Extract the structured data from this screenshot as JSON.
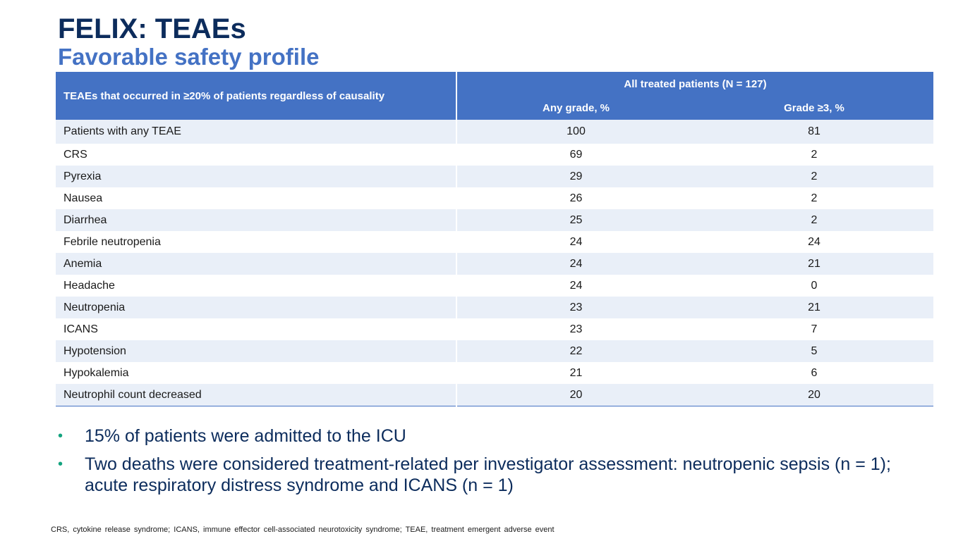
{
  "slide": {
    "title": "FELIX: TEAEs",
    "subtitle": "Favorable safety profile"
  },
  "table": {
    "row_header": "TEAEs that occurred in ≥20% of patients regardless of causality",
    "group_header": "All treated patients (N = 127)",
    "col_any": "Any grade, %",
    "col_grade3": "Grade ≥3, %",
    "rows": [
      {
        "name": "Patients with any TEAE",
        "any": "100",
        "g3": "81"
      },
      {
        "name": "CRS",
        "any": "69",
        "g3": "2"
      },
      {
        "name": "Pyrexia",
        "any": "29",
        "g3": "2"
      },
      {
        "name": "Nausea",
        "any": "26",
        "g3": "2"
      },
      {
        "name": "Diarrhea",
        "any": "25",
        "g3": "2"
      },
      {
        "name": "Febrile neutropenia",
        "any": "24",
        "g3": "24"
      },
      {
        "name": "Anemia",
        "any": "24",
        "g3": "21"
      },
      {
        "name": "Headache",
        "any": "24",
        "g3": "0"
      },
      {
        "name": "Neutropenia",
        "any": "23",
        "g3": "21"
      },
      {
        "name": "ICANS",
        "any": "23",
        "g3": "7"
      },
      {
        "name": "Hypotension",
        "any": "22",
        "g3": "5"
      },
      {
        "name": "Hypokalemia",
        "any": "21",
        "g3": "6"
      },
      {
        "name": "Neutrophil count decreased",
        "any": "20",
        "g3": "20"
      }
    ]
  },
  "bullets": [
    "15% of patients were admitted to the ICU",
    "Two deaths were considered treatment-related per investigator assessment: neutropenic sepsis (n = 1); acute respiratory distress syndrome and ICANS (n = 1)"
  ],
  "bullet_symbol": "•",
  "footnote": "CRS, cytokine release syndrome; ICANS, immune effector cell-associated neurotoxicity syndrome; TEAE, treatment emergent adverse event",
  "colors": {
    "title": "#0c2c5c",
    "subtitle": "#4472c4",
    "header_bg": "#4472c4",
    "row_band": "#e9eff8",
    "bullet": "#14a37f"
  }
}
